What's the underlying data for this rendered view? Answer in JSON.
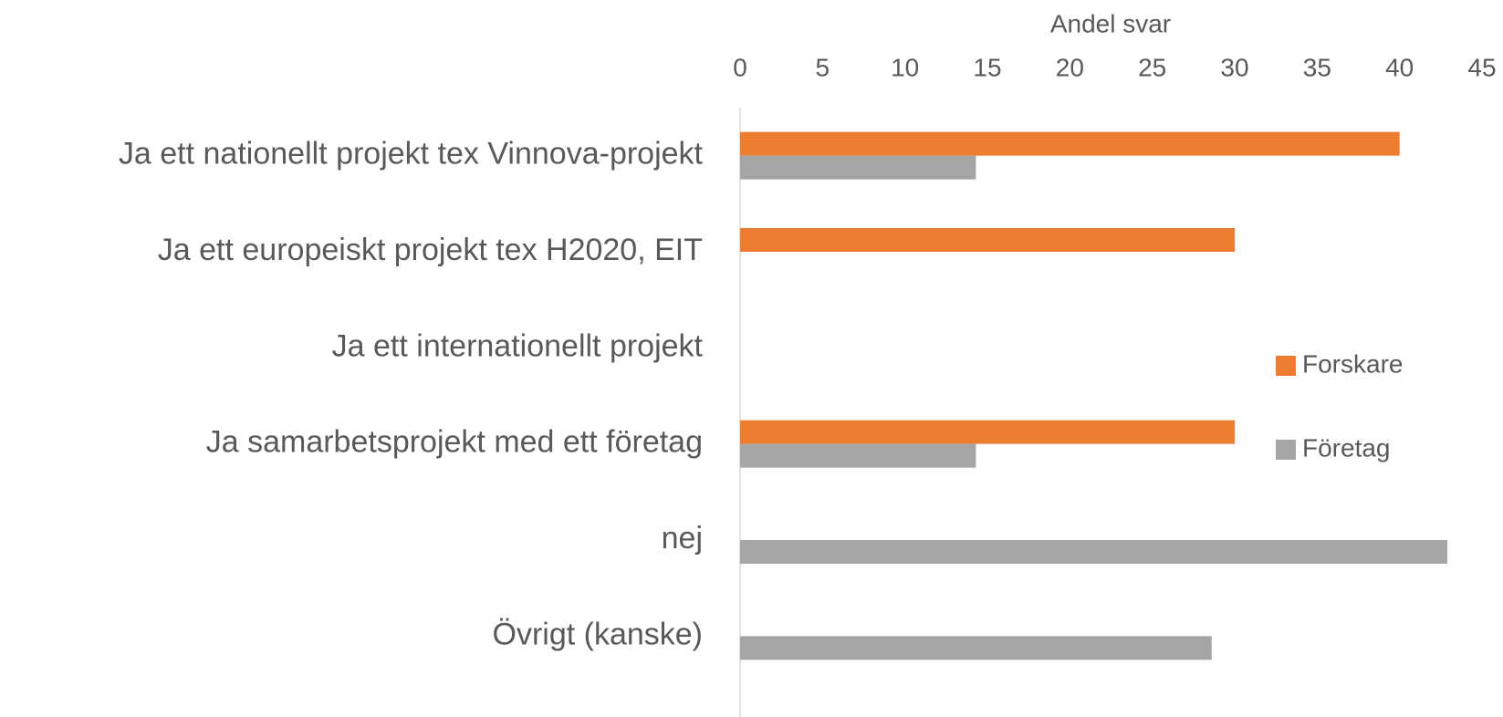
{
  "chart_data": {
    "type": "hbar",
    "x_label": "Andel svar",
    "categories": [
      "Ja ett nationellt projekt tex Vinnova-projekt",
      "Ja ett europeiskt projekt tex H2020, EIT",
      "Ja ett internationellt projekt",
      "Ja samarbetsprojekt med ett företag",
      "nej",
      "Övrigt (kanske)"
    ],
    "series": [
      {
        "name": "Forskare",
        "color": "#ed7d31",
        "values": [
          40,
          30,
          0,
          30,
          0,
          0
        ]
      },
      {
        "name": "Företag",
        "color": "#a5a5a5",
        "values": [
          14.3,
          0,
          0,
          14.3,
          42.9,
          28.6
        ]
      }
    ],
    "xlim": [
      0,
      45
    ],
    "xticks": [
      0,
      5,
      10,
      15,
      20,
      25,
      30,
      35,
      40,
      45
    ],
    "grid": false,
    "legend": "right"
  }
}
